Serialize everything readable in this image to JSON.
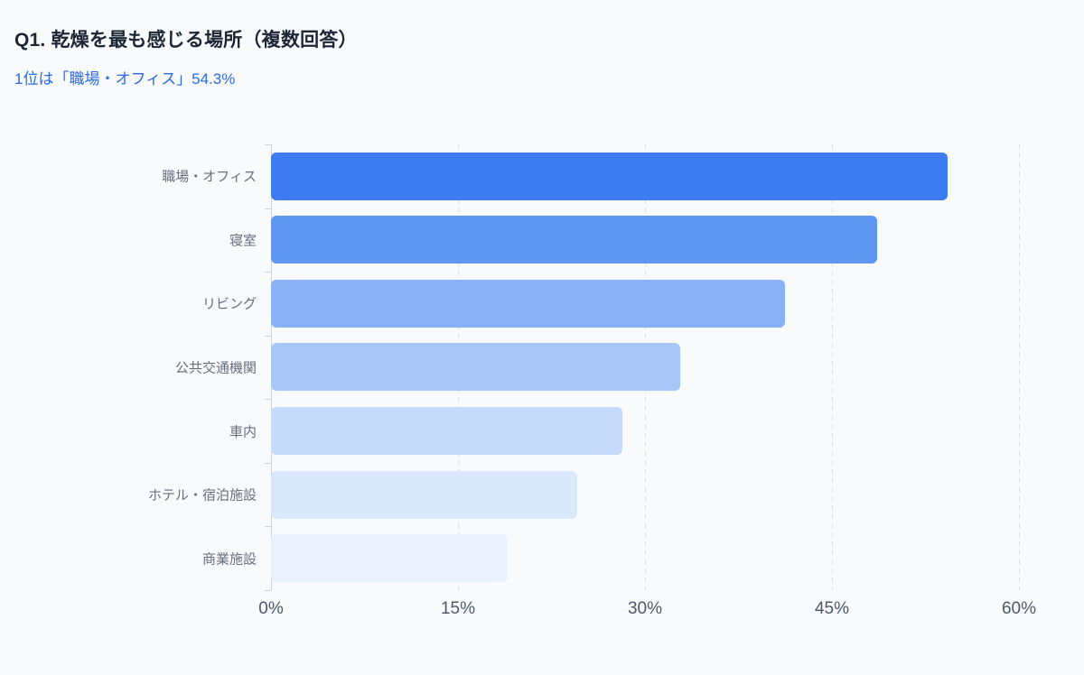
{
  "header": {
    "title": "Q1. 乾燥を最も感じる場所（複数回答）",
    "subtitle": "1位は「職場・オフィス」54.3%"
  },
  "chart_data": {
    "type": "bar",
    "orientation": "horizontal",
    "title": "Q1. 乾燥を最も感じる場所（複数回答）",
    "subtitle": "1位は「職場・オフィス」54.3%",
    "categories": [
      "職場・オフィス",
      "寝室",
      "リビング",
      "公共交通機関",
      "車内",
      "ホテル・宿泊施設",
      "商業施設"
    ],
    "values": [
      54.3,
      48.6,
      41.2,
      32.8,
      28.2,
      24.6,
      19.0
    ],
    "unit": "%",
    "xlim": [
      0,
      60
    ],
    "x_ticks": [
      "0%",
      "15%",
      "30%",
      "45%",
      "60%"
    ],
    "x_tick_values": [
      0,
      15,
      30,
      45,
      60
    ],
    "grid": "dashed-vertical",
    "legend": "none",
    "bar_colors": [
      "#3d7bf0",
      "#5e96f2",
      "#88b2f5",
      "#a8c7f7",
      "#c6daf9",
      "#dae8fb",
      "#e8f1fd"
    ]
  },
  "colors": {
    "page_bg": "#f9fafc",
    "title_text": "#1c2634",
    "subtitle_text": "#2a6ae4",
    "category_text": "#666f7b",
    "tick_text": "#4e5968",
    "axis_line": "#ccd3dc",
    "gridline": "#d8dde4"
  }
}
